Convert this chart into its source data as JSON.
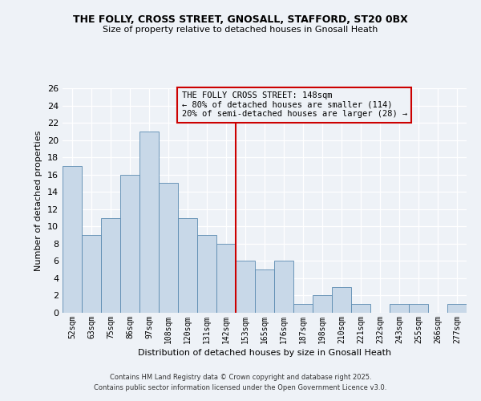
{
  "title": "THE FOLLY, CROSS STREET, GNOSALL, STAFFORD, ST20 0BX",
  "subtitle": "Size of property relative to detached houses in Gnosall Heath",
  "xlabel": "Distribution of detached houses by size in Gnosall Heath",
  "ylabel": "Number of detached properties",
  "bar_color": "#c8d8e8",
  "bar_edge_color": "#5a8ab0",
  "categories": [
    "52sqm",
    "63sqm",
    "75sqm",
    "86sqm",
    "97sqm",
    "108sqm",
    "120sqm",
    "131sqm",
    "142sqm",
    "153sqm",
    "165sqm",
    "176sqm",
    "187sqm",
    "198sqm",
    "210sqm",
    "221sqm",
    "232sqm",
    "243sqm",
    "255sqm",
    "266sqm",
    "277sqm"
  ],
  "values": [
    17,
    9,
    11,
    16,
    21,
    15,
    11,
    9,
    8,
    6,
    5,
    6,
    1,
    2,
    3,
    1,
    0,
    1,
    1,
    0,
    1
  ],
  "ylim": [
    0,
    26
  ],
  "yticks": [
    0,
    2,
    4,
    6,
    8,
    10,
    12,
    14,
    16,
    18,
    20,
    22,
    24,
    26
  ],
  "vline_x": 8.5,
  "vline_color": "#cc0000",
  "annotation_title": "THE FOLLY CROSS STREET: 148sqm",
  "annotation_line1": "← 80% of detached houses are smaller (114)",
  "annotation_line2": "20% of semi-detached houses are larger (28) →",
  "annotation_box_color": "#cc0000",
  "footer_line1": "Contains HM Land Registry data © Crown copyright and database right 2025.",
  "footer_line2": "Contains public sector information licensed under the Open Government Licence v3.0.",
  "bg_color": "#eef2f7",
  "grid_color": "#ffffff"
}
